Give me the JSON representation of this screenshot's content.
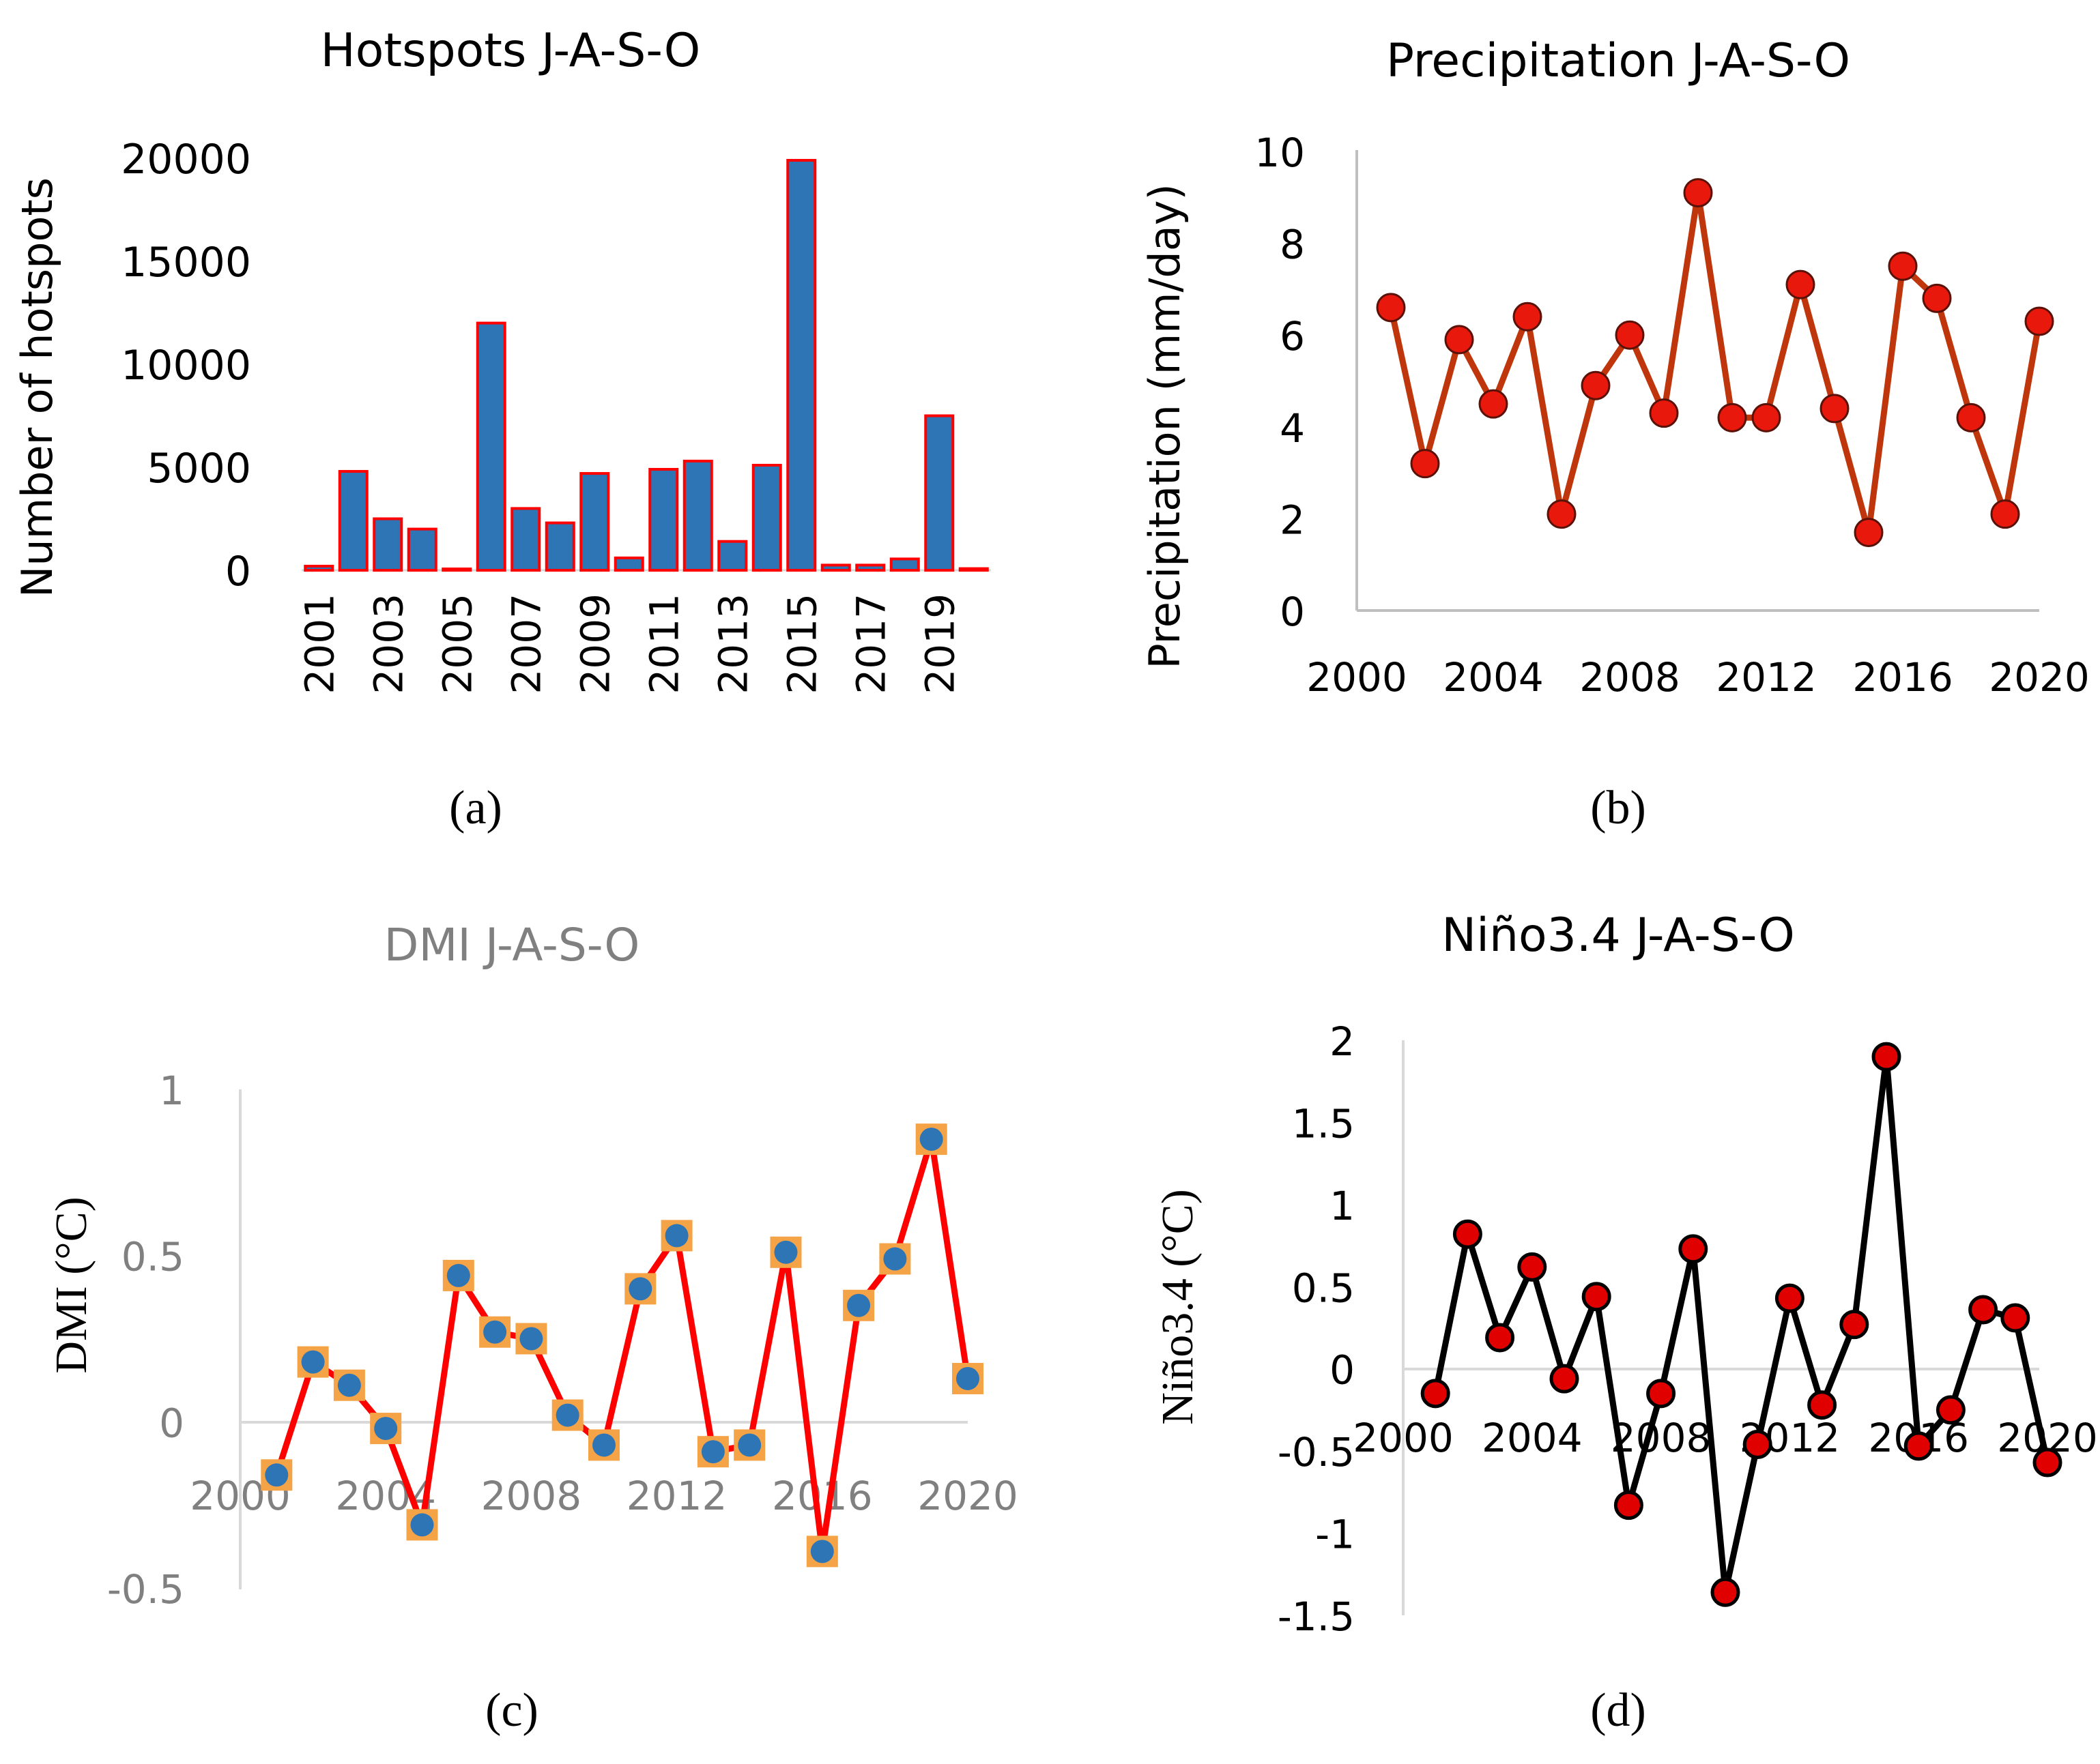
{
  "figure": {
    "panel_labels": [
      "(a)",
      "(b)",
      "(c)",
      "(d)"
    ]
  },
  "colors": {
    "bar_fill": "#2E75B6",
    "bar_outline": "#FF0000",
    "precip_line": "#C0360C",
    "precip_marker": "#E8180C",
    "dmi_line": "#FF0000",
    "dmi_marker": "#2E75B6",
    "dmi_marker_border": "#F5A347",
    "dmi_text": "#808080",
    "nino_line": "#000000",
    "nino_marker": "#E00000",
    "axis_gray": "#BFBFBF"
  },
  "chart_data": [
    {
      "id": "a",
      "type": "bar",
      "title": "Hotspots J-A-S-O",
      "xlabel": "",
      "ylabel": "Number of hotspots",
      "ylim": [
        0,
        20000
      ],
      "yticks": [
        "0",
        "5000",
        "10000",
        "15000",
        "20000"
      ],
      "xticks": [
        "2001",
        "2003",
        "2005",
        "2007",
        "2009",
        "2011",
        "2013",
        "2015",
        "2017",
        "2019"
      ],
      "categories": [
        2001,
        2002,
        2003,
        2004,
        2005,
        2006,
        2007,
        2008,
        2009,
        2010,
        2011,
        2012,
        2013,
        2014,
        2015,
        2016,
        2017,
        2018,
        2019,
        2020
      ],
      "values": [
        200,
        4800,
        2500,
        2000,
        50,
        12000,
        3000,
        2300,
        4700,
        600,
        4900,
        5300,
        1400,
        5100,
        19900,
        250,
        250,
        550,
        7500,
        80
      ]
    },
    {
      "id": "b",
      "type": "line",
      "title": "Precipitation J-A-S-O",
      "xlabel": "",
      "ylabel": "Precipitation (mm/day)",
      "ylim": [
        0,
        10
      ],
      "xlim": [
        2000,
        2020
      ],
      "yticks": [
        "0",
        "2",
        "4",
        "6",
        "8",
        "10"
      ],
      "xticks": [
        "2000",
        "2004",
        "2008",
        "2012",
        "2016",
        "2020"
      ],
      "x": [
        2001,
        2002,
        2003,
        2004,
        2005,
        2006,
        2007,
        2008,
        2009,
        2010,
        2011,
        2012,
        2013,
        2014,
        2015,
        2016,
        2017,
        2018,
        2019,
        2020
      ],
      "values": [
        6.6,
        3.2,
        5.9,
        4.5,
        6.4,
        2.1,
        4.9,
        6.0,
        4.3,
        9.1,
        4.2,
        4.2,
        7.1,
        4.4,
        1.7,
        7.5,
        6.8,
        4.2,
        2.1,
        6.3
      ]
    },
    {
      "id": "c",
      "type": "line",
      "title": "DMI J-A-S-O",
      "xlabel": "",
      "ylabel": "DMI (°C)",
      "ylim": [
        -0.5,
        1
      ],
      "xlim": [
        2000,
        2020
      ],
      "yticks": [
        "-0.5",
        "0",
        "0.5",
        "1"
      ],
      "xticks": [
        "2000",
        "2004",
        "2008",
        "2012",
        "2016",
        "2020"
      ],
      "x": [
        2001,
        2002,
        2003,
        2004,
        2005,
        2006,
        2007,
        2008,
        2009,
        2010,
        2011,
        2012,
        2013,
        2014,
        2015,
        2016,
        2017,
        2018,
        2019,
        2020
      ],
      "values": [
        -0.16,
        0.18,
        0.11,
        -0.02,
        -0.31,
        0.44,
        0.27,
        0.25,
        0.02,
        -0.07,
        0.4,
        0.56,
        -0.09,
        -0.07,
        0.51,
        -0.39,
        0.35,
        0.49,
        0.85,
        0.13
      ]
    },
    {
      "id": "d",
      "type": "line",
      "title": "Niño3.4 J-A-S-O",
      "xlabel": "",
      "ylabel": "Niño3.4 (°C)",
      "ylim": [
        -1.5,
        2
      ],
      "xlim": [
        2000,
        2020
      ],
      "yticks": [
        "-1.5",
        "-1",
        "-0.5",
        "0",
        "0.5",
        "1",
        "1.5",
        "2"
      ],
      "xticks": [
        "2000",
        "2004",
        "2008",
        "2012",
        "2016",
        "2020"
      ],
      "x": [
        2001,
        2002,
        2003,
        2004,
        2005,
        2006,
        2007,
        2008,
        2009,
        2010,
        2011,
        2012,
        2013,
        2014,
        2015,
        2016,
        2017,
        2018,
        2019,
        2020
      ],
      "values": [
        -0.15,
        0.82,
        0.19,
        0.62,
        -0.06,
        0.44,
        -0.83,
        -0.15,
        0.73,
        -1.36,
        -0.46,
        0.43,
        -0.22,
        0.27,
        1.9,
        -0.47,
        -0.25,
        0.36,
        0.31,
        -0.57
      ]
    }
  ]
}
